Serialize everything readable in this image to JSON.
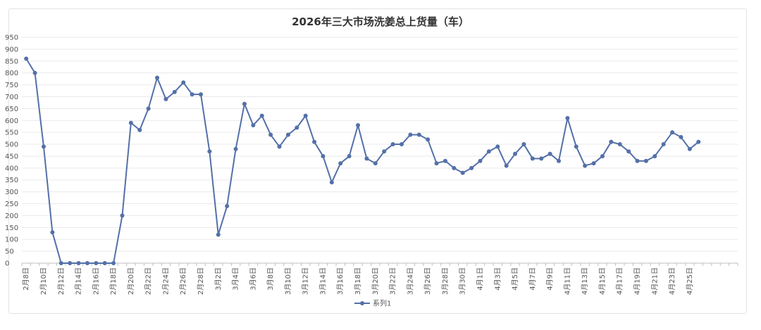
{
  "chart_data": {
    "type": "line",
    "title": "2026年三大市场洗姜总上货量（车）",
    "xlabel": "",
    "ylabel": "",
    "ylim": [
      0,
      950
    ],
    "y_ticks": [
      0,
      50,
      100,
      150,
      200,
      250,
      300,
      350,
      400,
      450,
      500,
      550,
      600,
      650,
      700,
      750,
      800,
      850,
      900,
      950
    ],
    "grid": true,
    "legend_position": "bottom",
    "colors": {
      "series": "#5470a8",
      "grid": "#e9e9e9",
      "axis": "#bfbfbf"
    },
    "x_labels": [
      "2月8日",
      "2月10日",
      "2月12日",
      "2月14日",
      "2月16日",
      "2月18日",
      "2月20日",
      "2月22日",
      "2月24日",
      "2月26日",
      "2月28日",
      "3月2日",
      "3月4日",
      "3月6日",
      "3月8日",
      "3月10日",
      "3月12日",
      "3月14日",
      "3月16日",
      "3月18日",
      "3月20日",
      "3月22日",
      "3月24日",
      "3月26日",
      "3月28日",
      "3月30日",
      "4月1日",
      "4月3日",
      "4月5日",
      "4月7日",
      "4月9日",
      "4月11日",
      "4月13日",
      "4月15日",
      "4月17日",
      "4月19日",
      "4月21日",
      "4月23日",
      "4月25日"
    ],
    "category_slots": 82,
    "series": [
      {
        "name": "系列1",
        "values": [
          860,
          800,
          490,
          130,
          0,
          0,
          0,
          0,
          0,
          0,
          0,
          200,
          590,
          560,
          650,
          780,
          690,
          720,
          760,
          710,
          710,
          470,
          120,
          240,
          480,
          670,
          580,
          620,
          540,
          490,
          540,
          570,
          620,
          510,
          450,
          340,
          420,
          450,
          580,
          440,
          420,
          470,
          500,
          500,
          540,
          540,
          520,
          420,
          430,
          400,
          380,
          400,
          430,
          470,
          490,
          410,
          460,
          500,
          440,
          440,
          460,
          430,
          610,
          490,
          410,
          420,
          450,
          510,
          500,
          470,
          430,
          430,
          450,
          500,
          550,
          530,
          480,
          510
        ]
      }
    ]
  }
}
